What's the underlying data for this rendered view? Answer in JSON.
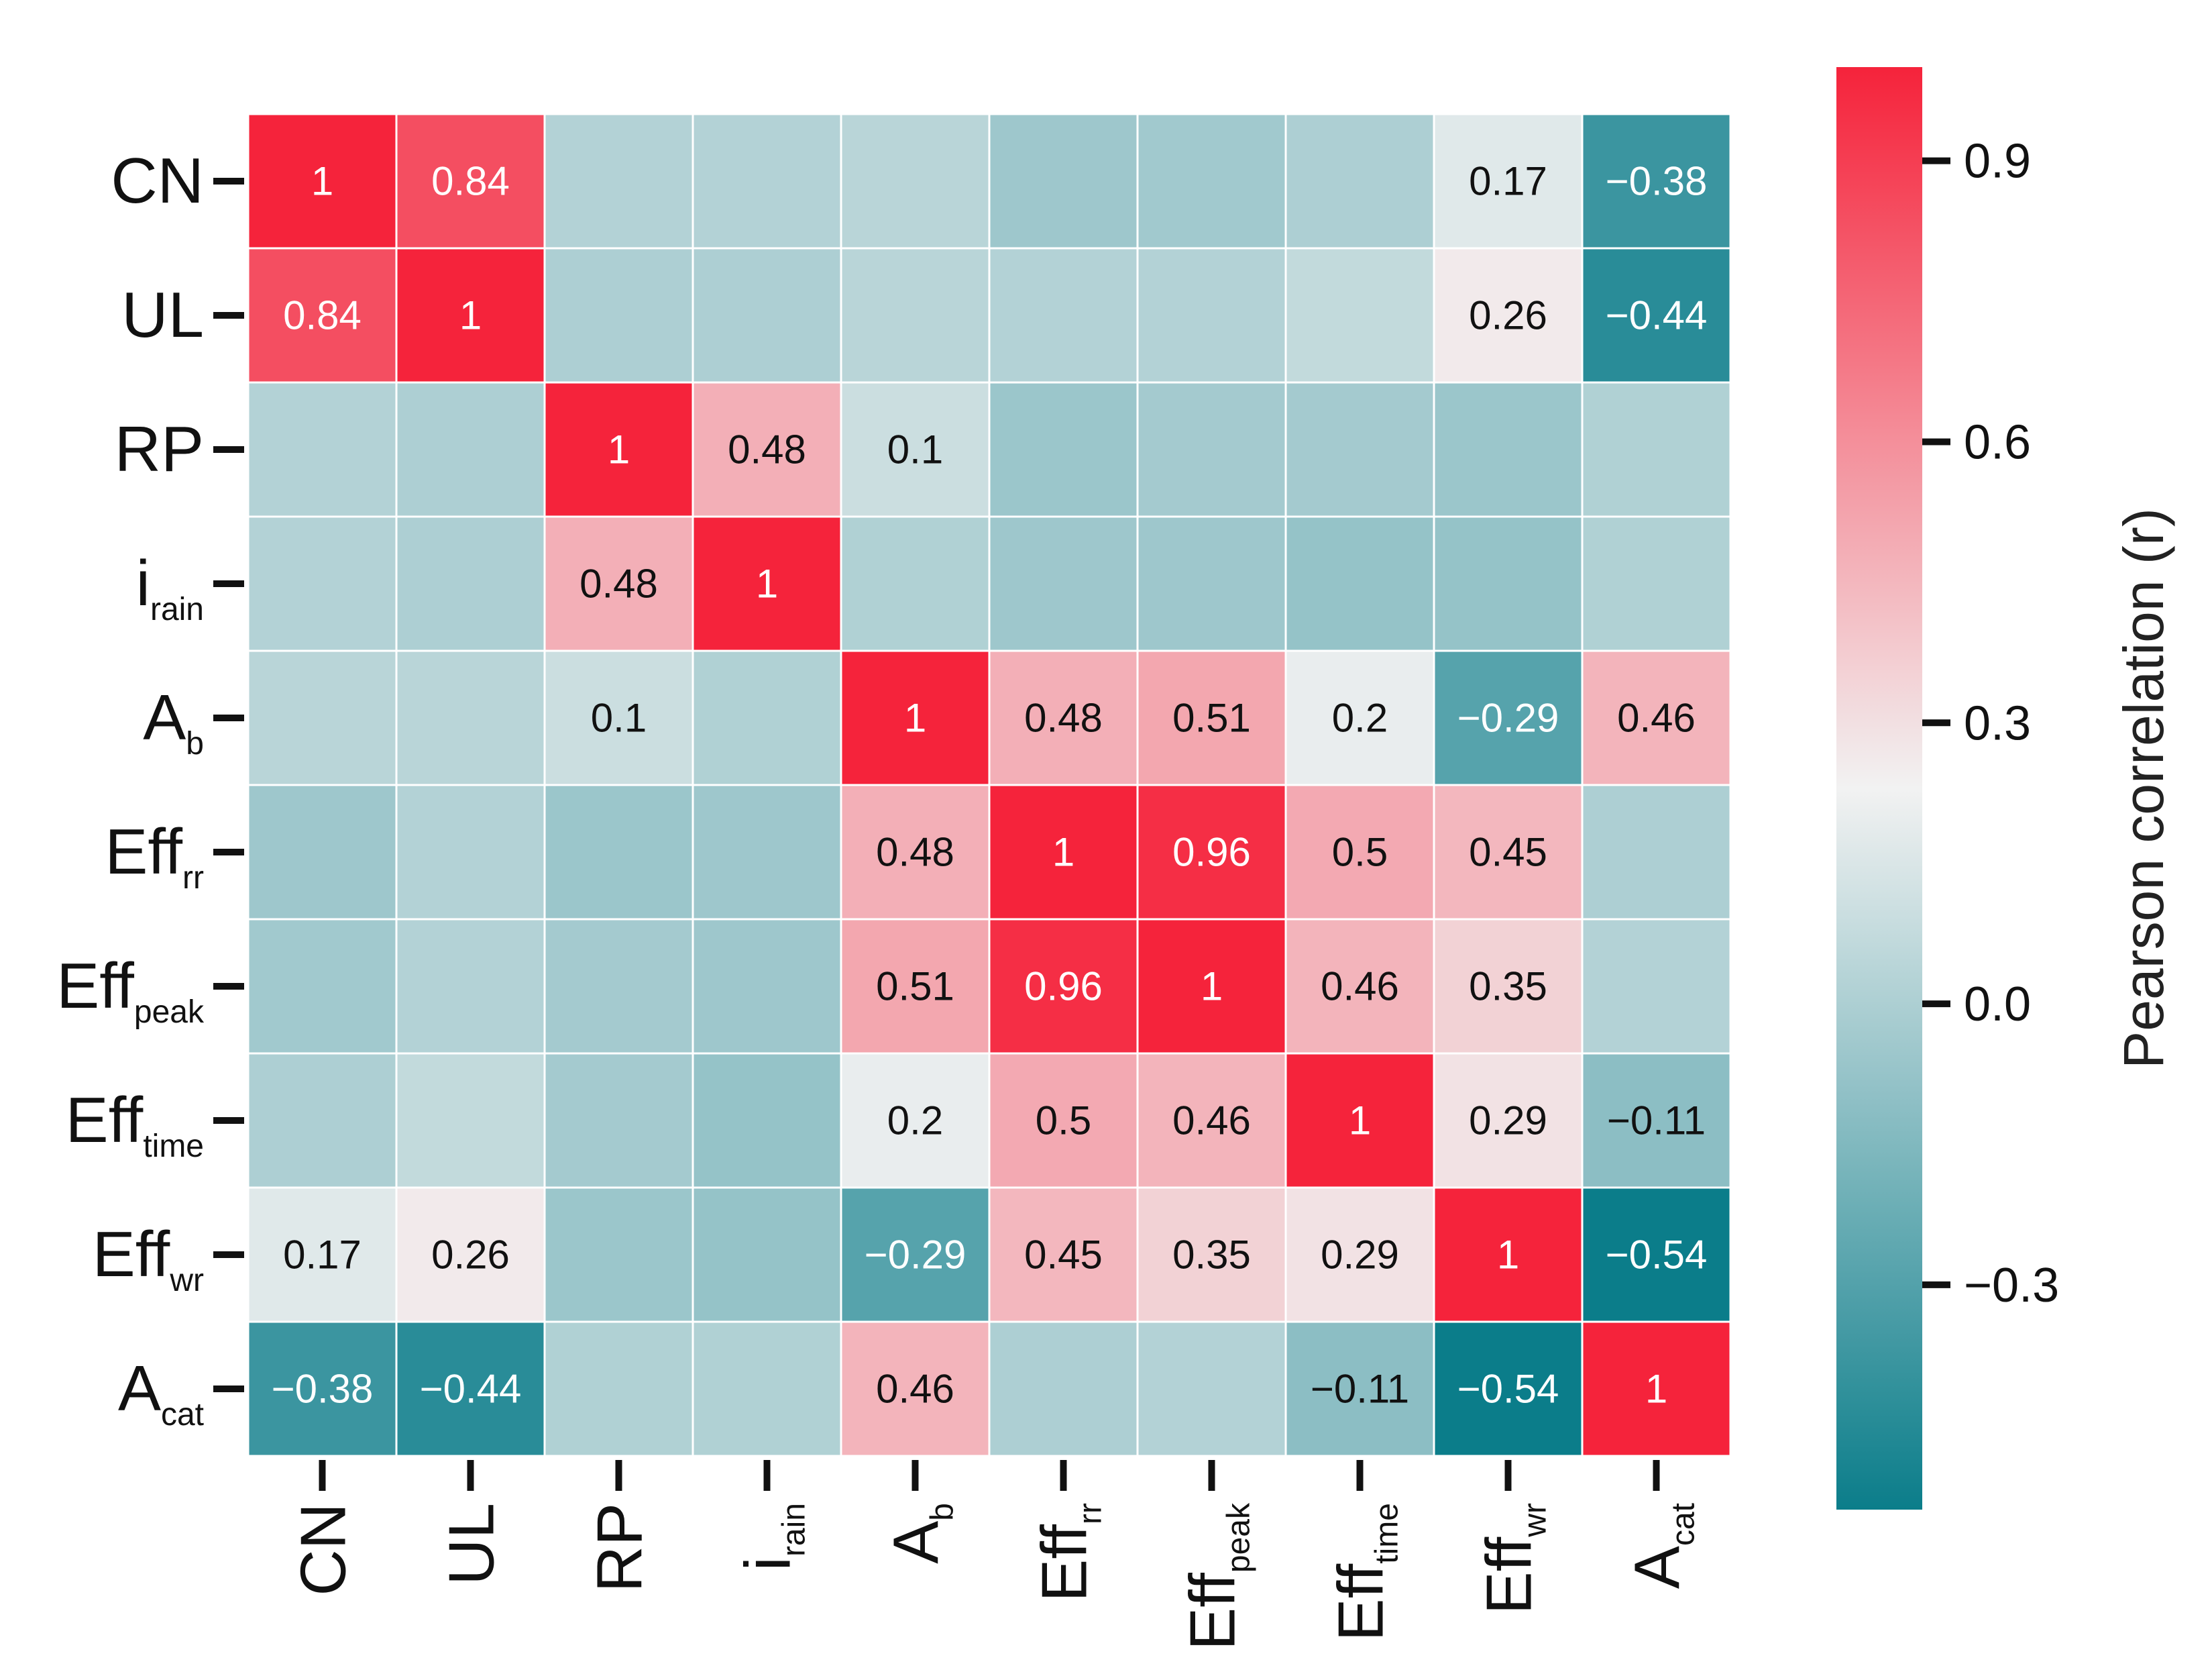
{
  "chart_data": {
    "type": "heatmap",
    "title": "",
    "labels": [
      {
        "main": "CN",
        "sub": ""
      },
      {
        "main": "UL",
        "sub": ""
      },
      {
        "main": "RP",
        "sub": ""
      },
      {
        "main": "i",
        "sub": "rain"
      },
      {
        "main": "A",
        "sub": "b"
      },
      {
        "main": "Eff",
        "sub": "rr"
      },
      {
        "main": "Eff",
        "sub": "peak"
      },
      {
        "main": "Eff",
        "sub": "time"
      },
      {
        "main": "Eff",
        "sub": "wr"
      },
      {
        "main": "A",
        "sub": "cat"
      }
    ],
    "matrix": [
      [
        1,
        0.84,
        0.02,
        0.02,
        0.04,
        -0.05,
        -0.04,
        0.0,
        0.17,
        -0.38
      ],
      [
        0.84,
        1,
        0.0,
        0.0,
        0.04,
        0.02,
        0.02,
        0.07,
        0.26,
        -0.44
      ],
      [
        0.02,
        0.0,
        1,
        0.48,
        0.1,
        -0.06,
        -0.03,
        -0.03,
        -0.06,
        0.01
      ],
      [
        0.02,
        0.0,
        0.48,
        1,
        0.01,
        -0.05,
        -0.05,
        -0.08,
        -0.08,
        0.01
      ],
      [
        0.04,
        0.04,
        0.1,
        0.01,
        1,
        0.48,
        0.51,
        0.2,
        -0.29,
        0.46
      ],
      [
        -0.05,
        0.02,
        -0.06,
        -0.05,
        0.48,
        1,
        0.96,
        0.5,
        0.45,
        0.0
      ],
      [
        -0.04,
        0.02,
        -0.03,
        -0.05,
        0.51,
        0.96,
        1,
        0.46,
        0.35,
        0.02
      ],
      [
        0.0,
        0.07,
        -0.03,
        -0.08,
        0.2,
        0.5,
        0.46,
        1,
        0.29,
        -0.11
      ],
      [
        0.17,
        0.26,
        -0.06,
        -0.08,
        -0.29,
        0.45,
        0.35,
        0.29,
        1,
        -0.54
      ],
      [
        -0.38,
        -0.44,
        0.01,
        0.01,
        0.46,
        0.0,
        0.02,
        -0.11,
        -0.54,
        1
      ]
    ],
    "annotations": [
      [
        "1",
        "0.84",
        "",
        "",
        "",
        "",
        "",
        "",
        "0.17",
        "−0.38"
      ],
      [
        "0.84",
        "1",
        "",
        "",
        "",
        "",
        "",
        "",
        "0.26",
        "−0.44"
      ],
      [
        "",
        "",
        "1",
        "0.48",
        "0.1",
        "",
        "",
        "",
        "",
        ""
      ],
      [
        "",
        "",
        "0.48",
        "1",
        "",
        "",
        "",
        "",
        "",
        ""
      ],
      [
        "",
        "",
        "0.1",
        "",
        "1",
        "0.48",
        "0.51",
        "0.2",
        "−0.29",
        "0.46"
      ],
      [
        "",
        "",
        "",
        "",
        "0.48",
        "1",
        "0.96",
        "0.5",
        "0.45",
        ""
      ],
      [
        "",
        "",
        "",
        "",
        "0.51",
        "0.96",
        "1",
        "0.46",
        "0.35",
        ""
      ],
      [
        "",
        "",
        "",
        "",
        "0.2",
        "0.5",
        "0.46",
        "1",
        "0.29",
        "−0.11"
      ],
      [
        "0.17",
        "0.26",
        "",
        "",
        "−0.29",
        "0.45",
        "0.35",
        "0.29",
        "1",
        "−0.54"
      ],
      [
        "−0.38",
        "−0.44",
        "",
        "",
        "0.46",
        "",
        "",
        "−0.11",
        "−0.54",
        "1"
      ]
    ],
    "colorbar": {
      "label": "Pearson correlation (r)",
      "range": [
        -0.54,
        1.0
      ],
      "center": 0.23,
      "ticks": [
        0.9,
        0.6,
        0.3,
        0.0,
        -0.3
      ],
      "tick_labels": [
        "0.9",
        "0.6",
        "0.3",
        "0.0",
        "−0.3"
      ],
      "low_color": "#0b7d8a",
      "center_color": "#f2f2f2",
      "high_color": "#f5233b"
    },
    "grid": true,
    "legend": "right"
  }
}
